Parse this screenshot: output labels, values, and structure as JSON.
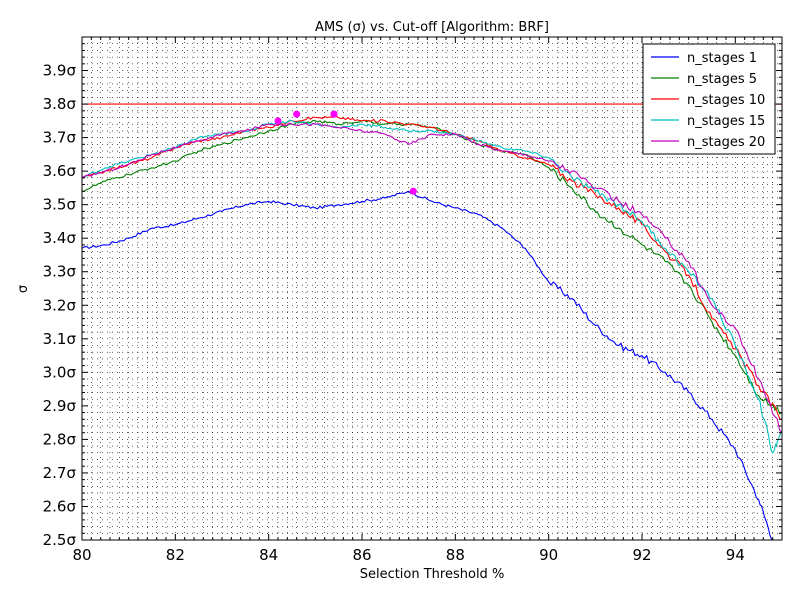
{
  "chart_data": {
    "type": "line",
    "title": "AMS (σ) vs. Cut-off [Algorithm: BRF]",
    "xlabel": "Selection Threshold %",
    "ylabel": "σ",
    "xlim": [
      80,
      95
    ],
    "ylim": [
      2.5,
      4.0
    ],
    "xticks": [
      80,
      82,
      84,
      86,
      88,
      90,
      92,
      94
    ],
    "yticks": [
      2.5,
      2.6,
      2.7,
      2.8,
      2.9,
      3.0,
      3.1,
      3.2,
      3.3,
      3.4,
      3.5,
      3.6,
      3.7,
      3.8,
      3.9
    ],
    "ytick_suffix": "σ",
    "grid": true,
    "legend_position": "top-right",
    "reference_line": {
      "y": 3.8,
      "color": "#ff0000"
    },
    "series": [
      {
        "name": "n_stages 1",
        "color": "#0000ff",
        "x": [
          80.0,
          80.5,
          81.0,
          81.5,
          82.0,
          82.5,
          83.0,
          83.5,
          84.0,
          84.5,
          85.0,
          85.5,
          86.0,
          86.5,
          87.0,
          87.5,
          88.0,
          88.5,
          89.0,
          89.5,
          90.0,
          90.5,
          91.0,
          91.5,
          92.0,
          92.5,
          93.0,
          93.5,
          94.0,
          94.5,
          94.8
        ],
        "y": [
          3.37,
          3.38,
          3.4,
          3.43,
          3.44,
          3.46,
          3.48,
          3.5,
          3.51,
          3.5,
          3.49,
          3.5,
          3.51,
          3.52,
          3.54,
          3.51,
          3.49,
          3.47,
          3.43,
          3.37,
          3.27,
          3.22,
          3.14,
          3.08,
          3.05,
          3.0,
          2.94,
          2.86,
          2.77,
          2.62,
          2.5
        ],
        "max_marker": {
          "x": 87.1,
          "y": 3.54
        }
      },
      {
        "name": "n_stages 5",
        "color": "#008000",
        "x": [
          80.0,
          80.5,
          81.0,
          81.5,
          82.0,
          82.5,
          83.0,
          83.5,
          84.0,
          84.5,
          85.0,
          85.5,
          86.0,
          86.5,
          87.0,
          87.5,
          88.0,
          88.5,
          89.0,
          89.5,
          90.0,
          90.5,
          91.0,
          91.5,
          92.0,
          92.5,
          93.0,
          93.5,
          94.0,
          94.5,
          95.0
        ],
        "y": [
          3.54,
          3.57,
          3.59,
          3.61,
          3.63,
          3.66,
          3.68,
          3.7,
          3.72,
          3.74,
          3.75,
          3.74,
          3.75,
          3.74,
          3.74,
          3.73,
          3.71,
          3.68,
          3.66,
          3.65,
          3.61,
          3.55,
          3.48,
          3.43,
          3.38,
          3.33,
          3.26,
          3.15,
          3.05,
          2.93,
          2.88
        ],
        "max_marker": {
          "x": 85.4,
          "y": 3.77
        }
      },
      {
        "name": "n_stages 10",
        "color": "#ff0000",
        "x": [
          80.0,
          80.5,
          81.0,
          81.5,
          82.0,
          82.5,
          83.0,
          83.5,
          84.0,
          84.5,
          85.0,
          85.5,
          86.0,
          86.5,
          87.0,
          87.5,
          88.0,
          88.5,
          89.0,
          89.5,
          90.0,
          90.5,
          91.0,
          91.5,
          92.0,
          92.5,
          93.0,
          93.5,
          94.0,
          94.5,
          95.0
        ],
        "y": [
          3.58,
          3.6,
          3.62,
          3.64,
          3.67,
          3.69,
          3.7,
          3.72,
          3.73,
          3.75,
          3.76,
          3.76,
          3.75,
          3.75,
          3.74,
          3.73,
          3.71,
          3.69,
          3.66,
          3.64,
          3.62,
          3.57,
          3.53,
          3.49,
          3.44,
          3.36,
          3.29,
          3.16,
          3.07,
          2.96,
          2.86
        ],
        "max_marker": {
          "x": 85.4,
          "y": 3.77
        }
      },
      {
        "name": "n_stages 15",
        "color": "#00bfbf",
        "x": [
          80.0,
          80.5,
          81.0,
          81.5,
          82.0,
          82.5,
          83.0,
          83.5,
          84.0,
          84.5,
          85.0,
          85.5,
          86.0,
          86.5,
          87.0,
          87.5,
          88.0,
          88.5,
          89.0,
          89.5,
          90.0,
          90.5,
          91.0,
          91.5,
          92.0,
          92.5,
          93.0,
          93.5,
          94.0,
          94.5,
          94.8,
          95.0
        ],
        "y": [
          3.58,
          3.61,
          3.63,
          3.65,
          3.67,
          3.7,
          3.71,
          3.72,
          3.74,
          3.75,
          3.74,
          3.73,
          3.74,
          3.73,
          3.72,
          3.72,
          3.71,
          3.69,
          3.67,
          3.66,
          3.64,
          3.58,
          3.54,
          3.5,
          3.45,
          3.37,
          3.3,
          3.22,
          3.08,
          2.92,
          2.76,
          2.82
        ],
        "max_marker": {
          "x": 84.6,
          "y": 3.77
        }
      },
      {
        "name": "n_stages 20",
        "color": "#bf00bf",
        "x": [
          80.0,
          80.5,
          81.0,
          81.5,
          82.0,
          82.5,
          83.0,
          83.5,
          84.0,
          84.5,
          85.0,
          85.5,
          86.0,
          86.5,
          87.0,
          87.5,
          88.0,
          88.5,
          89.0,
          89.5,
          90.0,
          90.5,
          91.0,
          91.5,
          92.0,
          92.5,
          93.0,
          93.5,
          94.0,
          94.5,
          95.0
        ],
        "y": [
          3.58,
          3.6,
          3.62,
          3.65,
          3.67,
          3.69,
          3.71,
          3.72,
          3.74,
          3.74,
          3.74,
          3.73,
          3.72,
          3.71,
          3.68,
          3.71,
          3.71,
          3.68,
          3.66,
          3.65,
          3.63,
          3.6,
          3.55,
          3.51,
          3.47,
          3.4,
          3.33,
          3.2,
          3.13,
          2.98,
          2.82
        ],
        "max_marker": {
          "x": 84.2,
          "y": 3.75
        }
      }
    ]
  }
}
